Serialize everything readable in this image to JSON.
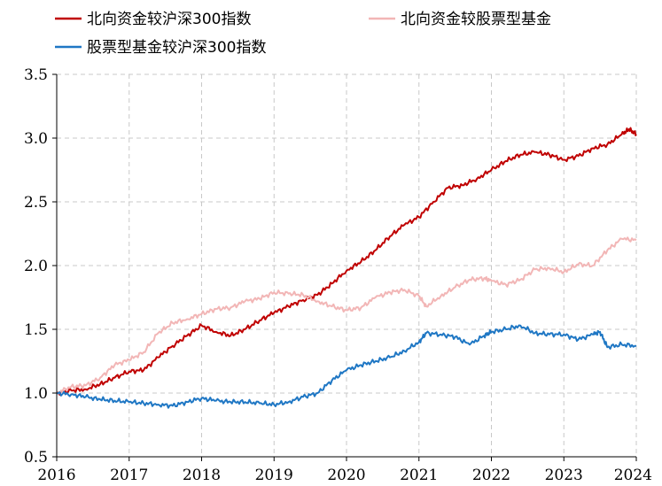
{
  "chart_data": {
    "type": "line",
    "title": "",
    "xlabel": "",
    "ylabel": "",
    "xlim": [
      2016,
      2024
    ],
    "ylim": [
      0.5,
      3.5
    ],
    "x_ticks": [
      "2016",
      "2017",
      "2018",
      "2019",
      "2020",
      "2021",
      "2022",
      "2023",
      "2024"
    ],
    "y_ticks": [
      "0.5",
      "1.0",
      "1.5",
      "2.0",
      "2.5",
      "3.0",
      "3.5"
    ],
    "grid": "dashed",
    "legend_position": "top",
    "series": [
      {
        "name": "北向资金较沪深300指数",
        "color": "#C00000",
        "x": [
          2016.0,
          2016.2,
          2016.4,
          2016.6,
          2016.8,
          2017.0,
          2017.2,
          2017.4,
          2017.6,
          2017.8,
          2018.0,
          2018.2,
          2018.4,
          2018.6,
          2018.8,
          2019.0,
          2019.2,
          2019.4,
          2019.6,
          2019.8,
          2020.0,
          2020.2,
          2020.4,
          2020.6,
          2020.8,
          2021.0,
          2021.2,
          2021.4,
          2021.6,
          2021.8,
          2022.0,
          2022.2,
          2022.4,
          2022.6,
          2022.8,
          2023.0,
          2023.2,
          2023.4,
          2023.6,
          2023.8,
          2023.9,
          2024.0
        ],
        "y": [
          1.0,
          1.02,
          1.03,
          1.07,
          1.12,
          1.17,
          1.18,
          1.28,
          1.37,
          1.45,
          1.53,
          1.48,
          1.45,
          1.5,
          1.57,
          1.63,
          1.68,
          1.73,
          1.77,
          1.86,
          1.96,
          2.03,
          2.12,
          2.23,
          2.32,
          2.38,
          2.5,
          2.61,
          2.63,
          2.68,
          2.75,
          2.82,
          2.87,
          2.89,
          2.87,
          2.83,
          2.86,
          2.92,
          2.95,
          3.03,
          3.07,
          3.03
        ]
      },
      {
        "name": "北向资金较股票型基金",
        "color": "#F2B6B6",
        "x": [
          2016.0,
          2016.2,
          2016.4,
          2016.6,
          2016.8,
          2017.0,
          2017.2,
          2017.4,
          2017.6,
          2017.8,
          2018.0,
          2018.2,
          2018.4,
          2018.6,
          2018.8,
          2019.0,
          2019.2,
          2019.4,
          2019.6,
          2019.8,
          2020.0,
          2020.2,
          2020.4,
          2020.6,
          2020.8,
          2021.0,
          2021.1,
          2021.3,
          2021.5,
          2021.7,
          2021.9,
          2022.0,
          2022.2,
          2022.4,
          2022.6,
          2022.8,
          2023.0,
          2023.2,
          2023.4,
          2023.6,
          2023.8,
          2024.0
        ],
        "y": [
          1.0,
          1.05,
          1.06,
          1.12,
          1.22,
          1.26,
          1.32,
          1.47,
          1.55,
          1.58,
          1.62,
          1.66,
          1.67,
          1.72,
          1.74,
          1.79,
          1.78,
          1.77,
          1.72,
          1.68,
          1.65,
          1.67,
          1.75,
          1.79,
          1.81,
          1.76,
          1.68,
          1.76,
          1.83,
          1.89,
          1.9,
          1.88,
          1.85,
          1.89,
          1.97,
          1.98,
          1.95,
          2.01,
          2.0,
          2.12,
          2.21,
          2.2
        ]
      },
      {
        "name": "股票型基金较沪深300指数",
        "color": "#1F77C4",
        "x": [
          2016.0,
          2016.2,
          2016.4,
          2016.6,
          2016.8,
          2017.0,
          2017.2,
          2017.4,
          2017.6,
          2017.8,
          2018.0,
          2018.2,
          2018.4,
          2018.6,
          2018.8,
          2019.0,
          2019.2,
          2019.4,
          2019.6,
          2019.8,
          2020.0,
          2020.2,
          2020.4,
          2020.6,
          2020.8,
          2021.0,
          2021.1,
          2021.3,
          2021.5,
          2021.7,
          2021.9,
          2022.0,
          2022.2,
          2022.4,
          2022.6,
          2022.8,
          2023.0,
          2023.2,
          2023.4,
          2023.5,
          2023.6,
          2023.8,
          2024.0
        ],
        "y": [
          1.0,
          0.99,
          0.97,
          0.95,
          0.94,
          0.93,
          0.92,
          0.91,
          0.9,
          0.93,
          0.96,
          0.94,
          0.93,
          0.93,
          0.92,
          0.91,
          0.93,
          0.97,
          1.0,
          1.1,
          1.18,
          1.22,
          1.25,
          1.28,
          1.33,
          1.4,
          1.47,
          1.46,
          1.44,
          1.38,
          1.45,
          1.48,
          1.5,
          1.53,
          1.47,
          1.46,
          1.46,
          1.42,
          1.46,
          1.48,
          1.36,
          1.38,
          1.37
        ]
      }
    ]
  }
}
